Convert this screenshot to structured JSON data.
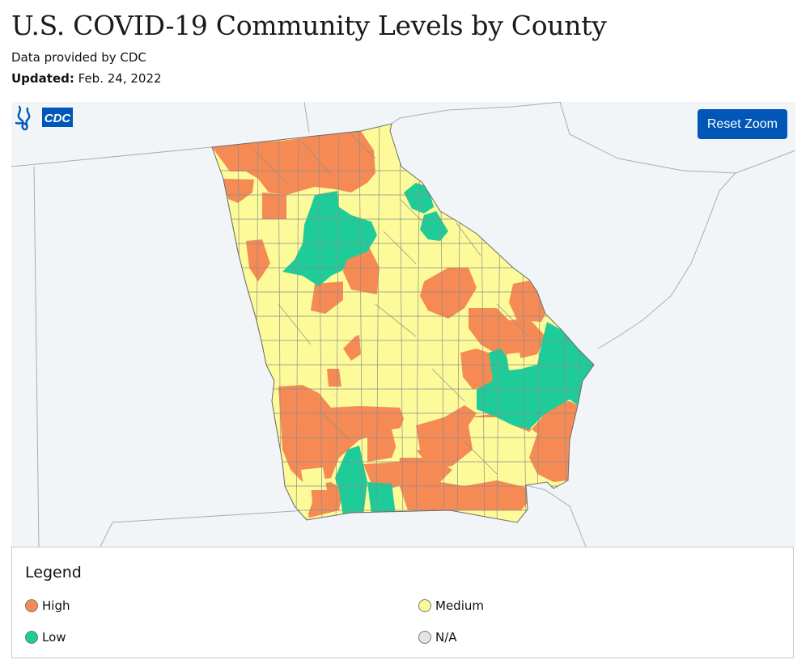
{
  "header": {
    "title": "U.S. COVID-19 Community Levels by County",
    "subtitle": "Data provided by CDC",
    "updated_label": "Updated:",
    "updated_value": "Feb. 24, 2022"
  },
  "map": {
    "region": "Georgia",
    "reset_zoom_label": "Reset Zoom",
    "logo_text": "CDC",
    "colors": {
      "high": "#f58a55",
      "medium": "#fdfb99",
      "low": "#1dcc98",
      "na": "#e5e5e5",
      "background": "#f2f5f8",
      "county_border": "#8c8c8c"
    }
  },
  "legend": {
    "title": "Legend",
    "items": [
      {
        "label": "High",
        "color": "#f58a55"
      },
      {
        "label": "Medium",
        "color": "#fdfb99"
      },
      {
        "label": "Low",
        "color": "#1dcc98"
      },
      {
        "label": "N/A",
        "color": "#e5e5e5"
      }
    ]
  }
}
